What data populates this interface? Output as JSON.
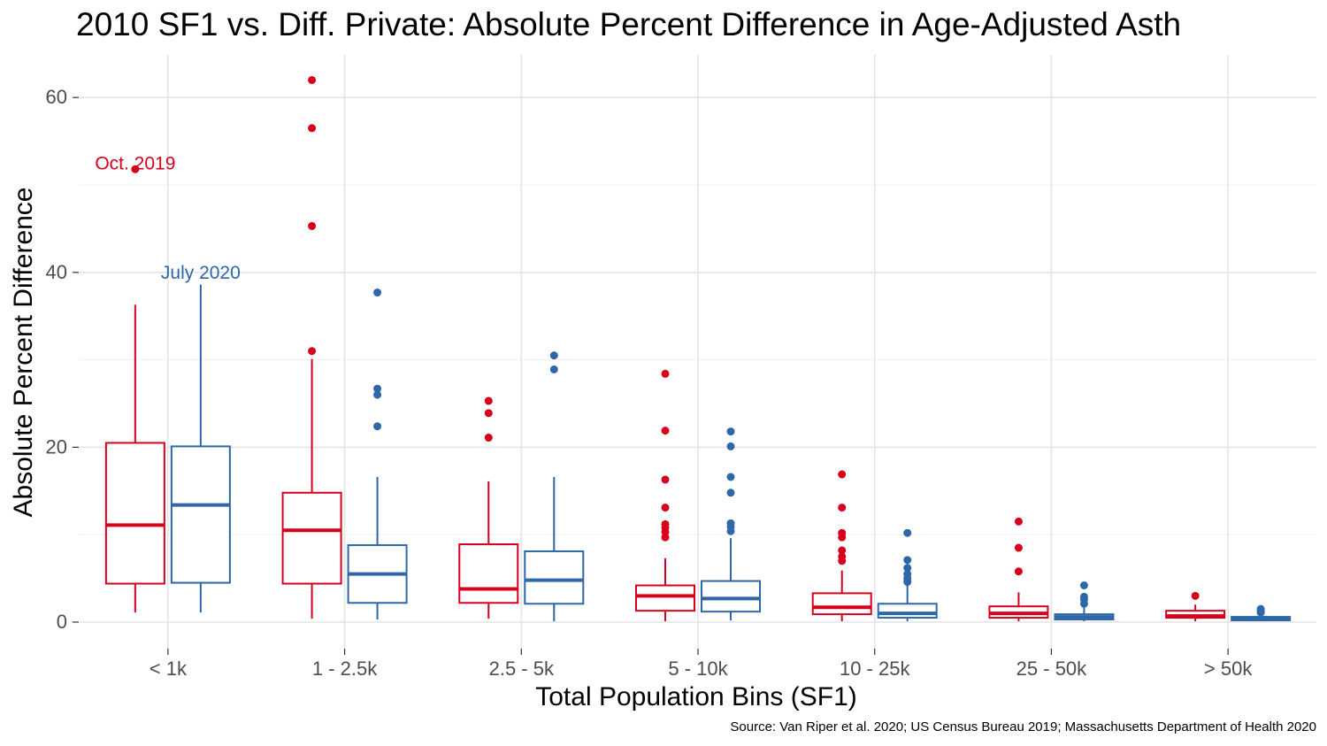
{
  "chart_data": {
    "type": "boxplot",
    "title": "2010 SF1 vs. Diff. Private: Absolute Percent Difference in Age-Adjusted Asth",
    "xlabel": "Total Population Bins (SF1)",
    "ylabel": "Absolute Percent Difference",
    "caption": "Source: Van Riper et al. 2020; US Census Bureau 2019; Massachusetts Department of Health 2020",
    "ylim": [
      -3,
      65
    ],
    "yticks": [
      "0",
      "20",
      "40",
      "60"
    ],
    "ytick_values": [
      0,
      20,
      40,
      60
    ],
    "grid": true,
    "categories": [
      "< 1k",
      "1 - 2.5k",
      "2.5 - 5k",
      "5 - 10k",
      "10 - 25k",
      "25 - 50k",
      "> 50k"
    ],
    "series": [
      {
        "name": "Oct. 2019",
        "color": "#d7001c",
        "boxes": [
          {
            "min": 1.1,
            "q1": 4.4,
            "median": 11.1,
            "q3": 20.5,
            "max": 36.3,
            "outliers": [
              51.8
            ]
          },
          {
            "min": 0.4,
            "q1": 4.4,
            "median": 10.5,
            "q3": 14.8,
            "max": 30.1,
            "outliers": [
              31.0,
              45.3,
              56.5,
              62.0
            ]
          },
          {
            "min": 0.4,
            "q1": 2.2,
            "median": 3.8,
            "q3": 8.9,
            "max": 16.1,
            "outliers": [
              21.1,
              23.9,
              25.3
            ]
          },
          {
            "min": 0.1,
            "q1": 1.3,
            "median": 3.0,
            "q3": 4.2,
            "max": 7.3,
            "outliers": [
              9.7,
              10.3,
              10.8,
              11.2,
              13.1,
              16.3,
              21.9,
              28.4
            ]
          },
          {
            "min": 0.1,
            "q1": 0.9,
            "median": 1.7,
            "q3": 3.3,
            "max": 5.9,
            "outliers": [
              7.0,
              7.5,
              8.2,
              9.7,
              10.2,
              13.1,
              16.9
            ]
          },
          {
            "min": 0.1,
            "q1": 0.5,
            "median": 1.0,
            "q3": 1.8,
            "max": 3.4,
            "outliers": [
              5.8,
              8.5,
              11.5
            ]
          },
          {
            "min": 0.1,
            "q1": 0.5,
            "median": 0.7,
            "q3": 1.3,
            "max": 2.0,
            "outliers": [
              3.0
            ]
          }
        ]
      },
      {
        "name": "July 2020",
        "color": "#2e67a8",
        "boxes": [
          {
            "min": 1.1,
            "q1": 4.5,
            "median": 13.4,
            "q3": 20.1,
            "max": 38.6,
            "outliers": []
          },
          {
            "min": 0.3,
            "q1": 2.2,
            "median": 5.5,
            "q3": 8.8,
            "max": 16.6,
            "outliers": [
              22.4,
              26.0,
              26.7,
              37.7
            ]
          },
          {
            "min": 0.1,
            "q1": 2.1,
            "median": 4.8,
            "q3": 8.1,
            "max": 16.6,
            "outliers": [
              28.9,
              30.5
            ]
          },
          {
            "min": 0.2,
            "q1": 1.2,
            "median": 2.7,
            "q3": 4.7,
            "max": 9.6,
            "outliers": [
              10.4,
              10.9,
              11.3,
              14.8,
              16.6,
              20.1,
              21.8
            ]
          },
          {
            "min": 0.1,
            "q1": 0.5,
            "median": 1.0,
            "q3": 2.1,
            "max": 4.2,
            "outliers": [
              4.6,
              5.0,
              5.5,
              6.2,
              7.1,
              10.2
            ]
          },
          {
            "min": 0.1,
            "q1": 0.3,
            "median": 0.6,
            "q3": 0.9,
            "max": 1.7,
            "outliers": [
              2.1,
              2.6,
              2.9,
              4.2
            ]
          },
          {
            "min": 0.1,
            "q1": 0.2,
            "median": 0.4,
            "q3": 0.6,
            "max": 0.8,
            "outliers": [
              1.1,
              1.3,
              1.5
            ]
          }
        ]
      }
    ],
    "annotations": [
      {
        "text": "Oct. 2019",
        "series": 0,
        "category": 0,
        "y": 52.5
      },
      {
        "text": "July 2020",
        "series": 1,
        "category": 0,
        "y": 40.0
      }
    ]
  }
}
